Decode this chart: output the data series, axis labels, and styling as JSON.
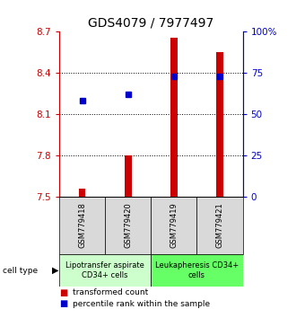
{
  "title": "GDS4079 / 7977497",
  "samples": [
    "GSM779418",
    "GSM779420",
    "GSM779419",
    "GSM779421"
  ],
  "red_values": [
    7.555,
    7.8,
    8.655,
    8.555
  ],
  "blue_values": [
    8.2,
    8.245,
    8.375,
    8.375
  ],
  "ymin": 7.5,
  "ymax": 8.7,
  "yticks_left": [
    7.5,
    7.8,
    8.1,
    8.4,
    8.7
  ],
  "yticks_right": [
    0,
    25,
    50,
    75,
    100
  ],
  "grid_lines": [
    7.8,
    8.1,
    8.4
  ],
  "bar_color": "#cc0000",
  "square_color": "#0000cc",
  "bar_width": 0.15,
  "group1_color": "#ccffcc",
  "group2_color": "#66ff66",
  "group1_label": "Lipotransfer aspirate\nCD34+ cells",
  "group2_label": "Leukapheresis CD34+\ncells",
  "group1_samples": [
    0,
    1
  ],
  "group2_samples": [
    2,
    3
  ],
  "cell_type_label": "cell type",
  "legend_red": "transformed count",
  "legend_blue": "percentile rank within the sample",
  "title_fontsize": 10,
  "tick_fontsize": 7.5,
  "sample_fontsize": 6,
  "group_fontsize": 6,
  "legend_fontsize": 6.5
}
